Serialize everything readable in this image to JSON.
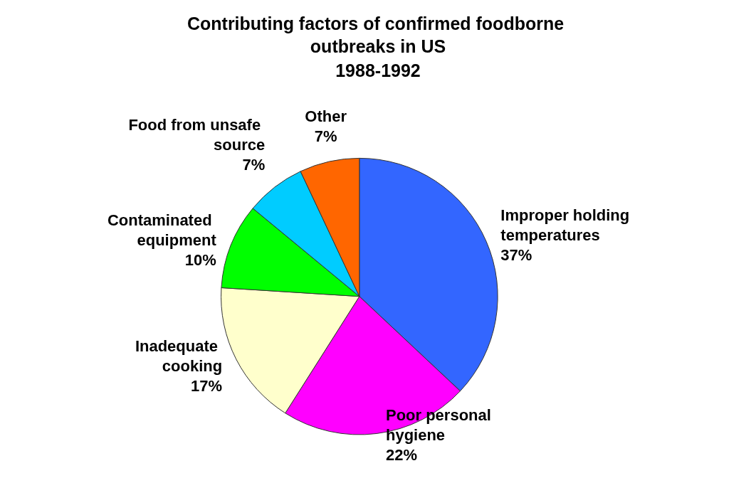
{
  "chart_data": {
    "type": "pie",
    "title": "Contributing factors of confirmed foodborne outbreaks in US",
    "subtitle": "1988-1992",
    "categories": [
      "Improper holding temperatures",
      "Poor personal hygiene",
      "Inadequate cooking",
      "Contaminated equipment",
      "Food from unsafe source",
      "Other"
    ],
    "values": [
      37,
      22,
      17,
      10,
      7,
      7
    ],
    "value_labels": [
      "37%",
      "22%",
      "17%",
      "10%",
      "7%",
      "7%"
    ],
    "colors": [
      "#3366ff",
      "#ff00ff",
      "#ffffcc",
      "#00ff00",
      "#00ccff",
      "#ff6600"
    ],
    "legend": false
  }
}
